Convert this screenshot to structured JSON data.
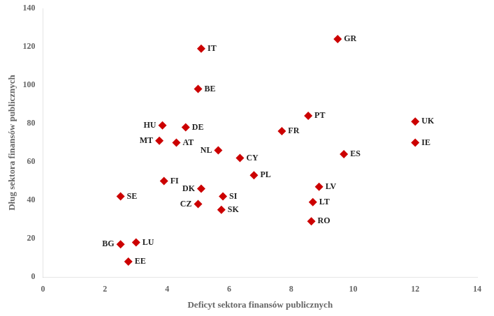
{
  "chart_data": {
    "type": "scatter",
    "xlabel": "Deficyt sektora finansów publicznych",
    "ylabel": "Dług sektora finansów publicznych",
    "xlim": [
      0,
      14
    ],
    "ylim": [
      0,
      140
    ],
    "xticks": [
      0,
      2,
      4,
      6,
      8,
      10,
      12,
      14
    ],
    "yticks": [
      0,
      20,
      40,
      60,
      80,
      100,
      120,
      140
    ],
    "grid": false,
    "color": "#cc0000",
    "marker": "diamond",
    "x": [
      9.5,
      5.1,
      5.0,
      3.85,
      4.6,
      3.75,
      4.3,
      8.55,
      7.7,
      12.0,
      12.0,
      9.7,
      5.65,
      6.35,
      6.8,
      3.9,
      5.1,
      8.9,
      5.8,
      5.75,
      5.0,
      8.7,
      8.65,
      2.5,
      2.5,
      3.0,
      2.75
    ],
    "values": [
      124,
      119,
      98,
      79,
      78,
      71,
      70,
      84,
      76,
      81,
      70,
      64,
      66,
      62,
      53,
      50,
      46,
      47,
      42,
      35,
      38,
      39,
      29,
      42,
      17,
      18,
      8
    ],
    "point_labels": [
      "GR",
      "IT",
      "BE",
      "HU",
      "DE",
      "MT",
      "AT",
      "PT",
      "FR",
      "UK",
      "IE",
      "ES",
      "NL",
      "CY",
      "PL",
      "FI",
      "DK",
      "LV",
      "SI",
      "SK",
      "CZ",
      "LT",
      "RO",
      "SE",
      "BG",
      "LU",
      "EE"
    ]
  }
}
